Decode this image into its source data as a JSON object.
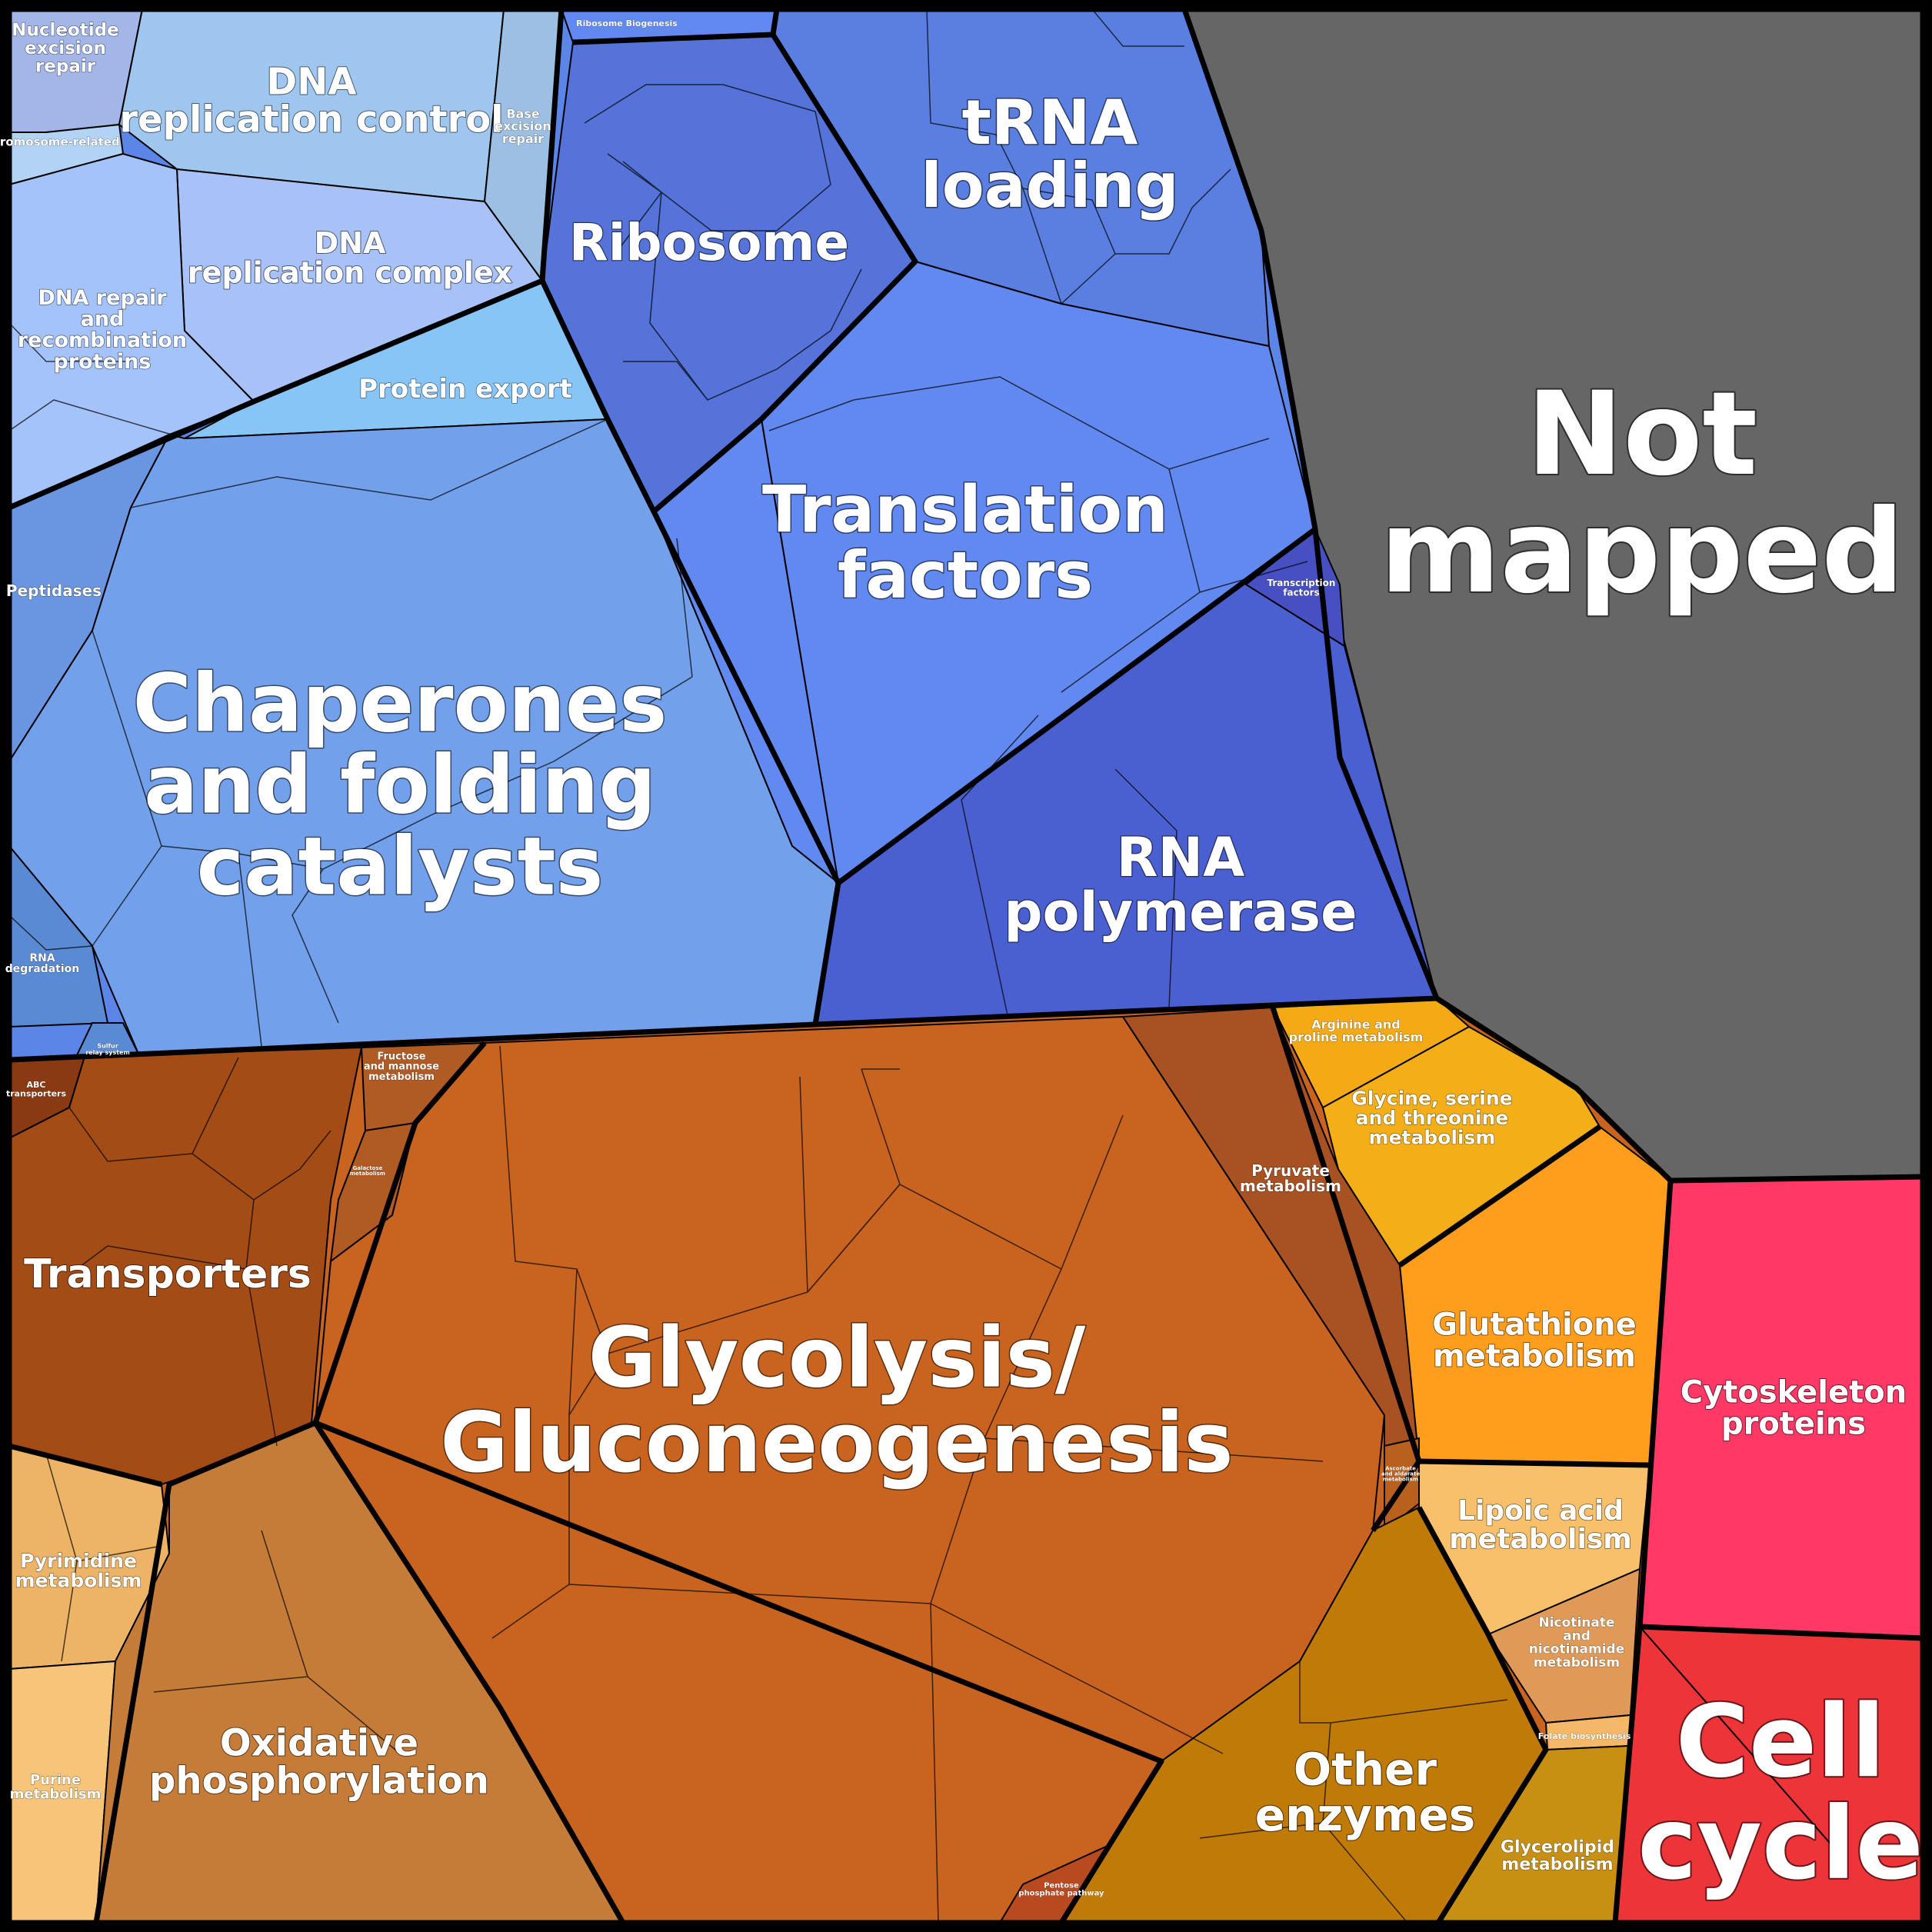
{
  "title": "",
  "regions": {
    "not_mapped": {
      "label": "Not mapped",
      "color": "#666666"
    },
    "cell_cycle": {
      "label": "Cell cycle",
      "color": "#ec3439"
    },
    "cytoskeleton": {
      "label": "Cytoskeleton proteins",
      "color": "#ff3866"
    }
  },
  "groups": {
    "blue_genetic": {
      "color": "#5b86e8"
    },
    "orange_metab": {
      "color": "#c8641f"
    }
  },
  "cells": {
    "nucleotide_excision_repair": {
      "label": "Nucleotide excision repair",
      "color": "#a3b6e8"
    },
    "chromosome_related": {
      "label": "Chromosome-related",
      "color": "#b3d3f4"
    },
    "dna_replication_control": {
      "label": "DNA replication control",
      "color": "#9ec6ee"
    },
    "base_excision_repair": {
      "label": "Base excision repair",
      "color": "#9cbfe3"
    },
    "dna_replication_complex": {
      "label": "DNA replication complex",
      "color": "#a8c2f7"
    },
    "dna_repair_recombination": {
      "label": "DNA repair and recombination proteins",
      "color": "#a5c3fb"
    },
    "protein_export": {
      "label": "Protein export",
      "color": "#88c5f7"
    },
    "ribosome_biogenesis": {
      "label": "Ribosome Biogenesis",
      "color": "#6189f0"
    },
    "ribosome": {
      "label": "Ribosome",
      "color": "#5573d8"
    },
    "trna_loading": {
      "label": "tRNA loading",
      "color": "#5a7fe0"
    },
    "translation_factors": {
      "label": "Translation factors",
      "color": "#6189f0"
    },
    "transcription_factors": {
      "label": "Transcription factors",
      "color": "#4750c0"
    },
    "rna_polymerase": {
      "label": "RNA polymerase",
      "color": "#4a5fd0"
    },
    "peptidases": {
      "label": "Peptidases",
      "color": "#6a95e0"
    },
    "chaperones": {
      "label": "Chaperones and folding catalysts",
      "color": "#72a0ea"
    },
    "rna_degradation": {
      "label": "RNA degradation",
      "color": "#5a8ad4"
    },
    "sulfur_relay": {
      "label": "Sulfur relay system",
      "color": "#5a8ad4"
    },
    "abc_transporters": {
      "label": "ABC transporters",
      "color": "#8a3a12"
    },
    "transporters": {
      "label": "Transporters",
      "color": "#a34c16"
    },
    "fructose_mannose": {
      "label": "Fructose and mannose metabolism",
      "color": "#b05a24"
    },
    "galactose": {
      "label": "Galactose metabolism",
      "color": "#b05a24"
    },
    "glycolysis": {
      "label": "Glycolysis/ Gluconeogenesis",
      "color": "#c8641f"
    },
    "pyruvate": {
      "label": "Pyruvate metabolism",
      "color": "#a85223"
    },
    "arginine_proline": {
      "label": "Arginine and proline metabolism",
      "color": "#f3aa14"
    },
    "glycine_serine_threonine": {
      "label": "Glycine, serine and threonine metabolism",
      "color": "#f4ae18"
    },
    "glutathione": {
      "label": "Glutathione metabolism",
      "color": "#ff9e1c"
    },
    "ascorbate_aldarate": {
      "label": "Ascorbate and aldarate metabolism",
      "color": "#b8601e"
    },
    "lipoic_acid": {
      "label": "Lipoic acid metabolism",
      "color": "#f8c06a"
    },
    "nicotinate": {
      "label": "Nicotinate and nicotinamide metabolism",
      "color": "#e09a58"
    },
    "folate": {
      "label": "Folate biosynthesis",
      "color": "#f4b868"
    },
    "other_enzymes": {
      "label": "Other enzymes",
      "color": "#c07a08"
    },
    "glycerolipid": {
      "label": "Glycerolipid metabolism",
      "color": "#c89012"
    },
    "pyrimidine": {
      "label": "Pyrimidine metabolism",
      "color": "#edb468"
    },
    "purine": {
      "label": "Purine metabolism",
      "color": "#f7c579"
    },
    "oxidative_phosphorylation": {
      "label": "Oxidative phosphorylation",
      "color": "#c47c38"
    },
    "pentose_phosphate": {
      "label": "Pentose phosphate pathway",
      "color": "#b84a20"
    }
  }
}
